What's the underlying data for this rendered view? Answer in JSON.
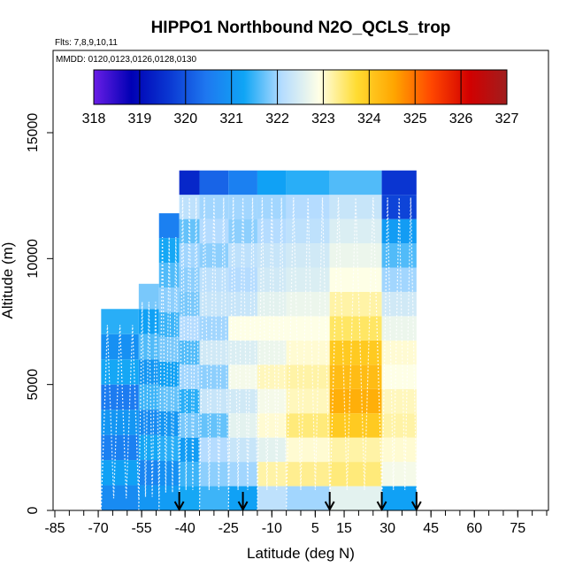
{
  "chart_data": {
    "type": "heatmap",
    "title": "HIPPO1 Northbound N2O_QCLS_trop",
    "flights_label": "Flts: 7,8,9,10,11",
    "mmdd_label": "MMDD: 0120,0123,0126,0128,0130",
    "xlabel": "Latitude (deg N)",
    "ylabel": "Altitude (m)",
    "xlim": [
      -85,
      85
    ],
    "ylim": [
      0,
      17500
    ],
    "x_ticks": [
      -85,
      -70,
      -55,
      -40,
      -25,
      -10,
      5,
      15,
      30,
      45,
      60,
      75
    ],
    "x_tick_labels": [
      "-85",
      "-70",
      "-55",
      "-40",
      "-25",
      "-10",
      "5",
      "15",
      "30",
      "45",
      "60",
      "75"
    ],
    "x_minor_step": 5,
    "y_ticks": [
      0,
      5000,
      10000,
      15000
    ],
    "y_tick_labels": [
      "0",
      "5000",
      "10000",
      "15000"
    ],
    "colorbar": {
      "ticks": [
        318,
        319,
        320,
        321,
        322,
        323,
        324,
        325,
        326,
        327
      ],
      "tick_labels": [
        "318",
        "319",
        "320",
        "321",
        "322",
        "323",
        "324",
        "325",
        "326",
        "327"
      ],
      "colors": [
        "#6a1ee6",
        "#0000b4",
        "#0a37d2",
        "#1e78f0",
        "#0fa5f5",
        "#b4dcff",
        "#ffffe6",
        "#ffdc32",
        "#ffa500",
        "#ff4600",
        "#d20000",
        "#a01e1e"
      ]
    },
    "profile_arrows_lat": [
      -42,
      -20,
      10,
      28,
      40
    ],
    "profiles": [
      {
        "lat": [
          -69,
          -56
        ],
        "alt_top": 8000,
        "n2o": [
          320.8,
          321.2,
          320.6,
          321.0,
          320.5,
          321.3,
          320.9,
          321.4
        ]
      },
      {
        "lat": [
          -56,
          -49
        ],
        "alt_top": 9000,
        "n2o": [
          321.0,
          320.7,
          321.3,
          320.8,
          321.5,
          321.0,
          321.6,
          321.2,
          321.8
        ]
      },
      {
        "lat": [
          -49,
          -42
        ],
        "alt_top": 11800,
        "n2o": [
          321.1,
          320.9,
          321.4,
          321.0,
          321.7,
          321.2,
          321.8,
          321.5,
          321.9,
          321.6,
          321.3,
          320.6
        ]
      },
      {
        "lat": [
          -42,
          -35
        ],
        "alt_top": 13500,
        "n2o": [
          321.3,
          321.5,
          321.1,
          321.8,
          321.4,
          322.0,
          321.6,
          322.1,
          321.8,
          321.9,
          322.0,
          321.7,
          322.2,
          319.4
        ]
      },
      {
        "lat": [
          -35,
          -25
        ],
        "alt_top": 13500,
        "n2o": [
          321.5,
          321.9,
          322.1,
          321.7,
          322.3,
          321.9,
          322.4,
          322.0,
          322.3,
          322.2,
          321.9,
          322.1,
          322.0,
          320.2
        ]
      },
      {
        "lat": [
          -25,
          -15
        ],
        "alt_top": 13500,
        "n2o": [
          321.2,
          322.0,
          322.3,
          322.6,
          322.4,
          322.8,
          322.5,
          322.9,
          322.3,
          322.1,
          322.2,
          321.9,
          322.0,
          320.6
        ]
      },
      {
        "lat": [
          -15,
          -5
        ],
        "alt_top": 13500,
        "n2o": [
          322.2,
          323.2,
          322.6,
          323.0,
          322.8,
          323.1,
          322.7,
          322.9,
          322.6,
          322.4,
          322.3,
          322.1,
          322.0,
          321.2
        ]
      },
      {
        "lat": [
          -5,
          10
        ],
        "alt_top": 13500,
        "n2o": [
          322.0,
          323.3,
          323.0,
          323.4,
          323.1,
          323.2,
          323.0,
          322.9,
          322.7,
          322.5,
          322.4,
          322.2,
          322.1,
          321.4
        ]
      },
      {
        "lat": [
          10,
          28
        ],
        "alt_top": 13500,
        "n2o": [
          322.6,
          323.4,
          323.2,
          324.0,
          324.4,
          324.2,
          324.0,
          323.5,
          323.2,
          322.9,
          322.7,
          322.5,
          322.3,
          321.6
        ]
      },
      {
        "lat": [
          28,
          40
        ],
        "alt_top": 13500,
        "n2o": [
          321.2,
          322.8,
          323.0,
          323.2,
          323.1,
          322.9,
          323.0,
          322.7,
          322.4,
          322.0,
          321.6,
          321.1,
          319.8,
          319.6
        ]
      }
    ]
  }
}
